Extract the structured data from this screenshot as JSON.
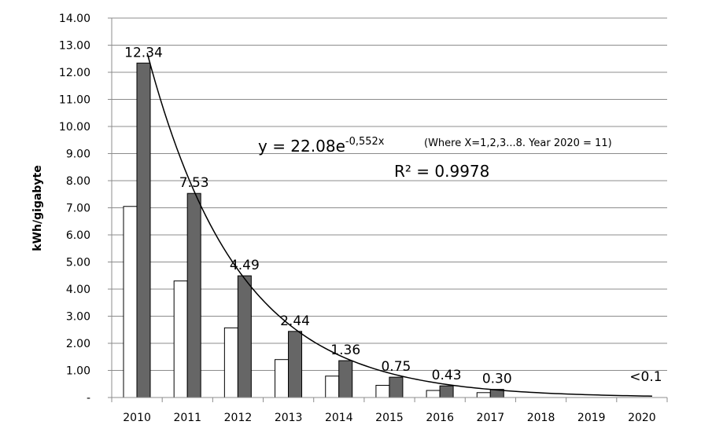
{
  "chart_data": {
    "type": "bar",
    "categories": [
      "2010",
      "2011",
      "2012",
      "2013",
      "2014",
      "2015",
      "2016",
      "2017",
      "2018",
      "2019",
      "2020"
    ],
    "series": [
      {
        "name": "white bars",
        "color": "#ffffff",
        "values": [
          7.05,
          4.3,
          2.57,
          1.4,
          0.79,
          0.45,
          0.26,
          0.18,
          null,
          null,
          null
        ]
      },
      {
        "name": "grey bars",
        "color": "#666666",
        "values": [
          12.34,
          7.53,
          4.49,
          2.44,
          1.36,
          0.75,
          0.43,
          0.3,
          null,
          null,
          null
        ]
      }
    ],
    "data_labels": [
      "12.34",
      "7.53",
      "4.49",
      "2.44",
      "1.36",
      "0.75",
      "0.43",
      "0.30",
      "",
      "",
      "<0.1"
    ],
    "ylabel": "kWh/gigabyte",
    "xlabel": "",
    "ylim": [
      0,
      14
    ],
    "ytick_labels": [
      "-",
      "1.00",
      "2.00",
      "3.00",
      "4.00",
      "5.00",
      "6.00",
      "7.00",
      "8.00",
      "9.00",
      "10.00",
      "11.00",
      "12.00",
      "13.00",
      "14.00"
    ],
    "trendline": {
      "type": "exponential",
      "a": 22.08,
      "b": -0.552,
      "x_start": 1,
      "x_end": 11
    },
    "equation": {
      "prefix": "y = 22.08e",
      "exponent": "-0,552x"
    },
    "note": "(Where X=1,2,3...8. Year 2020 = 11)",
    "r_squared": "R² = 0.9978",
    "grid": true
  }
}
